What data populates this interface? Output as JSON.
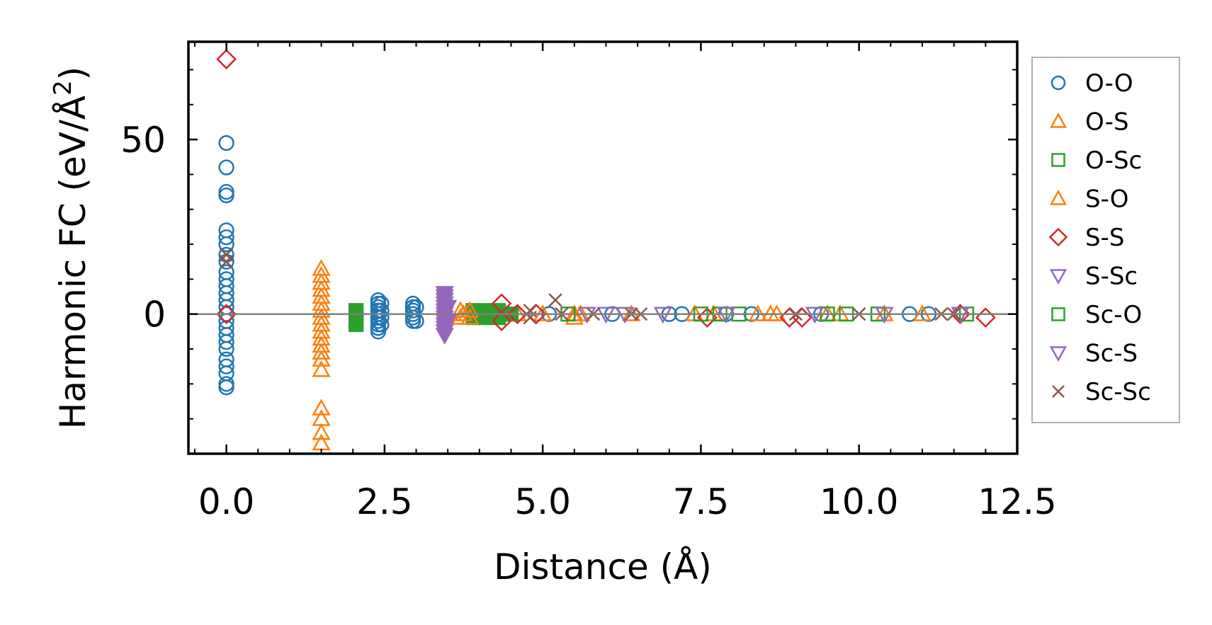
{
  "chart_data": {
    "type": "scatter",
    "title": "",
    "xlabel": "Distance (Å)",
    "ylabel_main": "Harmonic FC (eV/Å",
    "ylabel_sup": "2",
    "ylabel_tail": ")",
    "xlim": [
      -0.6,
      12.5
    ],
    "ylim": [
      -40,
      78
    ],
    "xticks": [
      0.0,
      2.5,
      5.0,
      7.5,
      10.0,
      12.5
    ],
    "xtick_labels": [
      "0.0",
      "2.5",
      "5.0",
      "7.5",
      "10.0",
      "12.5"
    ],
    "yticks": [
      0,
      50
    ],
    "ytick_labels": [
      "0",
      "50"
    ],
    "zero_line": true,
    "legend_position": "right",
    "series": [
      {
        "name": "O-O",
        "marker": "circle",
        "color": "#1f77b4",
        "filled": false,
        "points": [
          [
            0,
            49
          ],
          [
            0,
            42
          ],
          [
            0,
            35
          ],
          [
            0,
            34
          ],
          [
            0,
            24
          ],
          [
            0,
            22
          ],
          [
            0,
            20
          ],
          [
            0,
            17
          ],
          [
            0,
            15
          ],
          [
            0,
            12
          ],
          [
            0,
            10
          ],
          [
            0,
            8
          ],
          [
            0,
            6
          ],
          [
            0,
            4
          ],
          [
            0,
            2
          ],
          [
            0,
            0
          ],
          [
            0,
            -2
          ],
          [
            0,
            -4
          ],
          [
            0,
            -6
          ],
          [
            0,
            -8
          ],
          [
            0,
            -10
          ],
          [
            0,
            -13
          ],
          [
            0,
            -15
          ],
          [
            0,
            -17
          ],
          [
            0,
            -20
          ],
          [
            0,
            -21
          ],
          [
            2.4,
            4
          ],
          [
            2.4,
            3
          ],
          [
            2.4,
            2
          ],
          [
            2.4,
            1
          ],
          [
            2.4,
            0
          ],
          [
            2.4,
            -1
          ],
          [
            2.4,
            -2
          ],
          [
            2.4,
            -3
          ],
          [
            2.4,
            -4
          ],
          [
            2.4,
            -5
          ],
          [
            2.45,
            3
          ],
          [
            2.45,
            1
          ],
          [
            2.45,
            -1
          ],
          [
            2.45,
            -3
          ],
          [
            2.95,
            3
          ],
          [
            2.95,
            2
          ],
          [
            2.95,
            1
          ],
          [
            2.95,
            0
          ],
          [
            2.95,
            -1
          ],
          [
            2.95,
            -2
          ],
          [
            3.0,
            2
          ],
          [
            3.0,
            -2
          ],
          [
            5.1,
            0
          ],
          [
            6.1,
            0
          ],
          [
            7.0,
            0
          ],
          [
            7.2,
            0
          ],
          [
            7.9,
            0
          ],
          [
            8.3,
            0
          ],
          [
            9.4,
            0
          ],
          [
            10.8,
            0
          ],
          [
            11.1,
            0
          ]
        ]
      },
      {
        "name": "O-S",
        "marker": "triangle-up",
        "color": "#ff7f0e",
        "filled": false,
        "points": [
          [
            1.5,
            13
          ],
          [
            1.5,
            11
          ],
          [
            1.5,
            9
          ],
          [
            1.5,
            7
          ],
          [
            1.5,
            5
          ],
          [
            1.5,
            3
          ],
          [
            1.5,
            1
          ],
          [
            1.5,
            -1
          ],
          [
            1.5,
            -3
          ],
          [
            1.5,
            -5
          ],
          [
            1.5,
            -7
          ],
          [
            1.5,
            -9
          ],
          [
            1.5,
            -11
          ],
          [
            1.5,
            -13
          ],
          [
            1.5,
            -16
          ],
          [
            1.5,
            -27
          ],
          [
            1.5,
            -30
          ],
          [
            1.5,
            -34
          ],
          [
            1.5,
            -37
          ],
          [
            3.7,
            1
          ],
          [
            3.7,
            -1
          ],
          [
            3.8,
            0
          ],
          [
            4.6,
            0
          ],
          [
            5.5,
            -1
          ],
          [
            5.6,
            0
          ],
          [
            7.4,
            0
          ],
          [
            8.4,
            0
          ],
          [
            8.6,
            0
          ],
          [
            9.7,
            0
          ],
          [
            11.0,
            0
          ]
        ]
      },
      {
        "name": "O-Sc",
        "marker": "square",
        "color": "#2ca02c",
        "filled": true,
        "points": [
          [
            2.05,
            1
          ],
          [
            2.05,
            0
          ],
          [
            2.05,
            -1
          ],
          [
            2.05,
            -2
          ],
          [
            2.05,
            -3
          ],
          [
            3.9,
            1
          ],
          [
            3.9,
            -1
          ],
          [
            4.0,
            0
          ],
          [
            4.1,
            1
          ],
          [
            4.1,
            -1
          ],
          [
            4.2,
            0
          ],
          [
            4.3,
            1
          ],
          [
            4.3,
            -1
          ],
          [
            4.4,
            0
          ],
          [
            4.5,
            0
          ]
        ]
      },
      {
        "name": "S-O",
        "marker": "triangle-up",
        "color": "#ff7f0e",
        "filled": false,
        "points": [
          [
            3.75,
            0
          ],
          [
            3.85,
            1
          ],
          [
            3.85,
            -1
          ],
          [
            5.0,
            0
          ],
          [
            5.5,
            0
          ],
          [
            6.4,
            0
          ],
          [
            7.7,
            0
          ],
          [
            8.7,
            0
          ],
          [
            9.5,
            0
          ],
          [
            10.4,
            0
          ]
        ]
      },
      {
        "name": "S-S",
        "marker": "diamond",
        "color": "#d62728",
        "filled": false,
        "points": [
          [
            0,
            73
          ],
          [
            0,
            0
          ],
          [
            4.35,
            3
          ],
          [
            4.35,
            -2
          ],
          [
            4.6,
            0
          ],
          [
            4.9,
            0
          ],
          [
            7.6,
            -1
          ],
          [
            8.9,
            -1
          ],
          [
            9.1,
            -1
          ],
          [
            11.6,
            0
          ],
          [
            12.0,
            -1
          ]
        ]
      },
      {
        "name": "S-Sc",
        "marker": "triangle-down",
        "color": "#9467bd",
        "filled": true,
        "points": [
          [
            3.45,
            6
          ],
          [
            3.45,
            5
          ],
          [
            3.45,
            4
          ],
          [
            3.45,
            3
          ],
          [
            3.45,
            2
          ],
          [
            3.45,
            1
          ],
          [
            3.45,
            0
          ],
          [
            3.45,
            -1
          ],
          [
            3.45,
            -2
          ],
          [
            3.45,
            -3
          ],
          [
            3.45,
            -4
          ],
          [
            3.45,
            -5
          ],
          [
            3.45,
            -6
          ],
          [
            3.5,
            2
          ],
          [
            3.5,
            -2
          ]
        ]
      },
      {
        "name": "Sc-O",
        "marker": "square",
        "color": "#2ca02c",
        "filled": false,
        "points": [
          [
            4.1,
            0
          ],
          [
            5.4,
            0
          ],
          [
            7.5,
            0
          ],
          [
            7.8,
            0
          ],
          [
            8.1,
            0
          ],
          [
            9.5,
            0
          ],
          [
            9.8,
            0
          ],
          [
            10.3,
            0
          ],
          [
            11.7,
            0
          ]
        ]
      },
      {
        "name": "Sc-S",
        "marker": "triangle-down",
        "color": "#9467bd",
        "filled": false,
        "points": [
          [
            5.7,
            0
          ],
          [
            6.0,
            0
          ],
          [
            6.3,
            0
          ],
          [
            6.9,
            0
          ],
          [
            7.9,
            0
          ],
          [
            9.3,
            0
          ],
          [
            10.4,
            0
          ],
          [
            11.6,
            0
          ]
        ]
      },
      {
        "name": "Sc-Sc",
        "marker": "x",
        "color": "#8c564b",
        "filled": false,
        "points": [
          [
            0,
            17
          ],
          [
            0,
            15
          ],
          [
            4.8,
            1
          ],
          [
            4.8,
            -1
          ],
          [
            5.2,
            4
          ],
          [
            5.3,
            0
          ],
          [
            5.8,
            0
          ],
          [
            6.4,
            0
          ],
          [
            6.55,
            0
          ],
          [
            9.0,
            0
          ],
          [
            10.0,
            0
          ],
          [
            11.3,
            0
          ],
          [
            11.5,
            0
          ]
        ]
      }
    ]
  }
}
